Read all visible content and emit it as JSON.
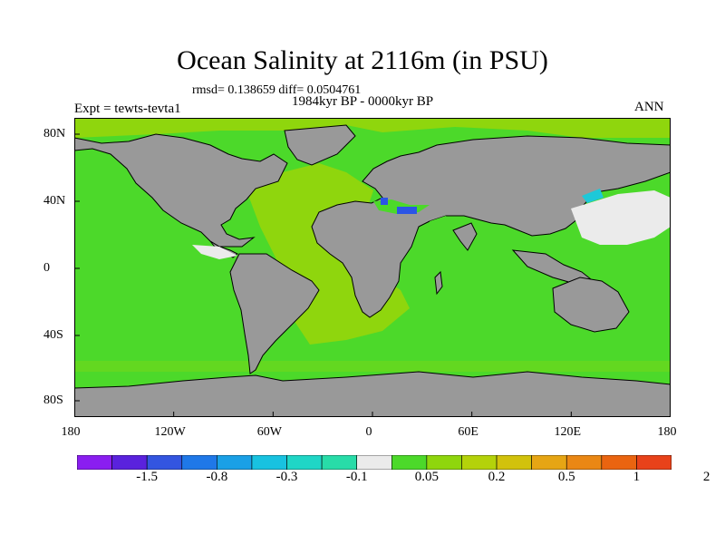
{
  "figure": {
    "title": "Ocean Salinity at 2116m (in PSU)",
    "stats": "rmsd= 0.138659 diff= 0.0504761",
    "period": "1984kyr BP - 0000kyr BP",
    "experiment": "Expt = tewts-tevta1",
    "season": "ANN"
  },
  "map": {
    "projection": "cylindrical equidistant",
    "lat_tick_labels": [
      "80N",
      "40N",
      "0",
      "40S",
      "80S"
    ],
    "lon_tick_labels": [
      "180",
      "120W",
      "60W",
      "0",
      "60E",
      "120E",
      "180"
    ],
    "colors": {
      "land": "#999999",
      "coast": "#000000",
      "ocean_main": "#4cd92a",
      "ocean_atlantic": "#8fd60d",
      "near_zero": "#ebebeb",
      "med_blue": "#2b55e6",
      "japan_sea": "#1ec8d8"
    }
  },
  "colorbar": {
    "colors": [
      "#8a1ef0",
      "#5a22dd",
      "#3355e0",
      "#1f78e8",
      "#1aa0e6",
      "#18c2e0",
      "#1fd6c6",
      "#28dca8",
      "#ebebeb",
      "#4cd92a",
      "#8fd60d",
      "#b4d20a",
      "#d2c20c",
      "#e6a514",
      "#ea8714",
      "#ea6410",
      "#e8421a"
    ],
    "tick_labels": [
      "-1.5",
      "-0.8",
      "-0.3",
      "-0.1",
      "0.05",
      "0.2",
      "0.5",
      "1",
      "2"
    ]
  }
}
